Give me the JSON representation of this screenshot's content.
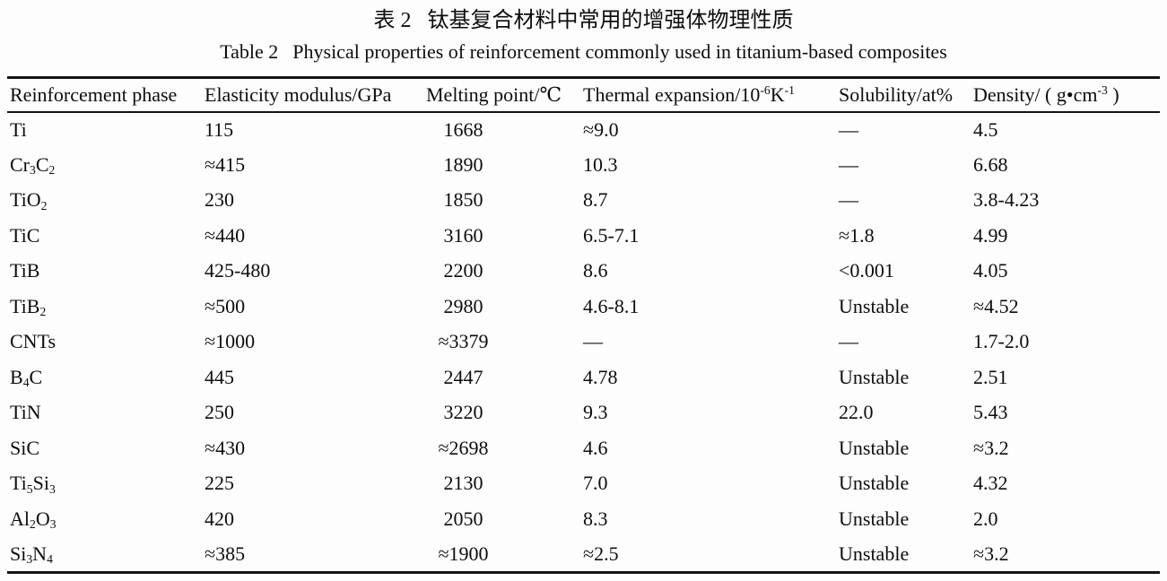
{
  "caption": {
    "zh_label": "表 2",
    "zh_text": "钛基复合材料中常用的增强体物理性质",
    "en_label": "Table 2",
    "en_text": "Physical properties of reinforcement commonly used in titanium-based composites"
  },
  "table": {
    "columns": [
      {
        "key": "phase",
        "label": "Reinforcement phase"
      },
      {
        "key": "modulus",
        "label": "Elasticity modulus/GPa"
      },
      {
        "key": "melting",
        "label": "Melting point/℃"
      },
      {
        "key": "expansion",
        "label": "Thermal expansion/10^{-6}K^{-1}"
      },
      {
        "key": "solubility",
        "label": "Solubility/at%"
      },
      {
        "key": "density",
        "label": "Density/ ( g•cm^{-3} )"
      }
    ],
    "rows": [
      {
        "phase": "Ti",
        "modulus": "115",
        "melting": "1668",
        "expansion": "≈9.0",
        "solubility": "—",
        "density": "4.5"
      },
      {
        "phase": "Cr_{3}C_{2}",
        "modulus": "≈415",
        "melting": "1890",
        "expansion": "10.3",
        "solubility": "—",
        "density": "6.68"
      },
      {
        "phase": "TiO_{2}",
        "modulus": "230",
        "melting": "1850",
        "expansion": "8.7",
        "solubility": "—",
        "density": "3.8-4.23"
      },
      {
        "phase": "TiC",
        "modulus": "≈440",
        "melting": "3160",
        "expansion": "6.5-7.1",
        "solubility": "≈1.8",
        "density": "4.99"
      },
      {
        "phase": "TiB",
        "modulus": "425-480",
        "melting": "2200",
        "expansion": "8.6",
        "solubility": "<0.001",
        "density": "4.05"
      },
      {
        "phase": "TiB_{2}",
        "modulus": "≈500",
        "melting": "2980",
        "expansion": "4.6-8.1",
        "solubility": "Unstable",
        "density": "≈4.52"
      },
      {
        "phase": "CNTs",
        "modulus": "≈1000",
        "melting": "≈3379",
        "expansion": "—",
        "solubility": "—",
        "density": "1.7-2.0"
      },
      {
        "phase": "B_{4}C",
        "modulus": "445",
        "melting": "2447",
        "expansion": "4.78",
        "solubility": "Unstable",
        "density": "2.51"
      },
      {
        "phase": "TiN",
        "modulus": "250",
        "melting": "3220",
        "expansion": "9.3",
        "solubility": "22.0",
        "density": "5.43"
      },
      {
        "phase": "SiC",
        "modulus": "≈430",
        "melting": "≈2698",
        "expansion": "4.6",
        "solubility": "Unstable",
        "density": "≈3.2"
      },
      {
        "phase": "Ti_{5}Si_{3}",
        "modulus": "225",
        "melting": "2130",
        "expansion": "7.0",
        "solubility": "Unstable",
        "density": "4.32"
      },
      {
        "phase": "Al_{2}O_{3}",
        "modulus": "420",
        "melting": "2050",
        "expansion": "8.3",
        "solubility": "Unstable",
        "density": "2.0"
      },
      {
        "phase": "Si_{3}N_{4}",
        "modulus": "≈385",
        "melting": "≈1900",
        "expansion": "≈2.5",
        "solubility": "Unstable",
        "density": "≈3.2"
      }
    ]
  }
}
